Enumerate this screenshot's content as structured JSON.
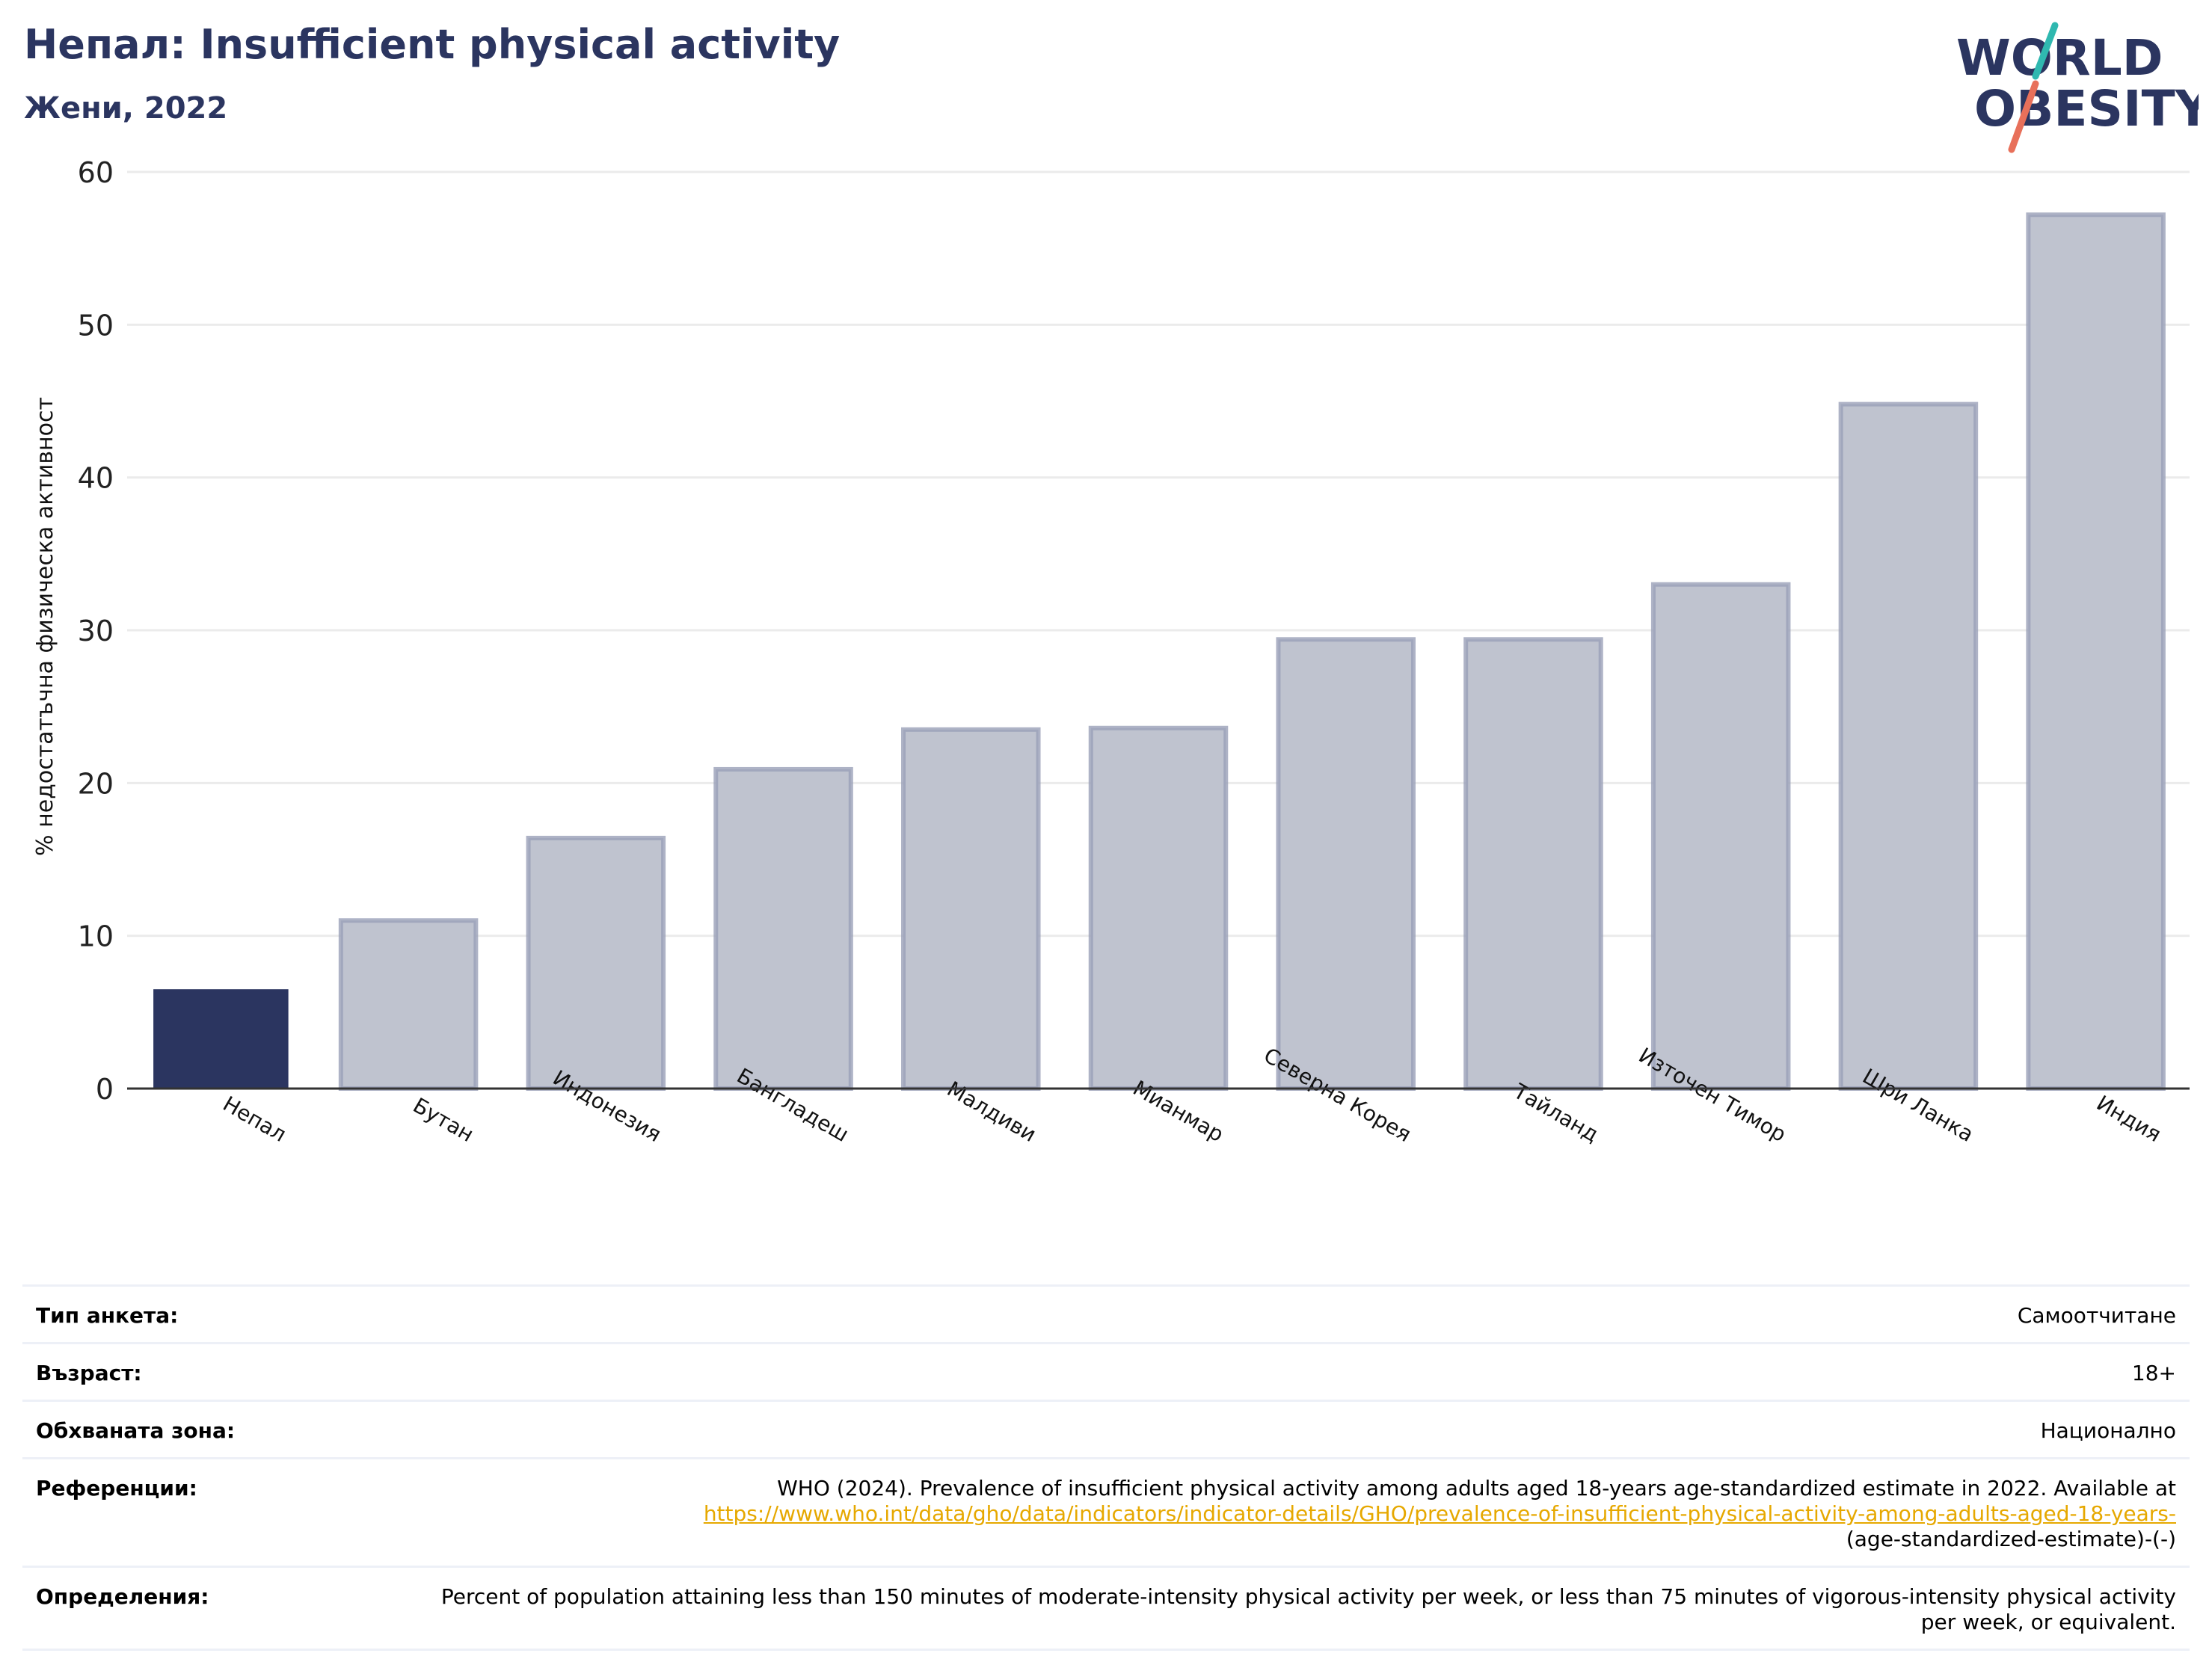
{
  "header": {
    "title": "Непал: Insufficient physical activity",
    "subtitle": "Жени, 2022"
  },
  "logo": {
    "line1": "WORLD",
    "line2": "OBESITY"
  },
  "chart_data": {
    "type": "bar",
    "ylabel": "% недостатъчна физическа активност",
    "xlabel": "",
    "ylim": [
      0,
      60
    ],
    "yticks": [
      0,
      10,
      20,
      30,
      40,
      50,
      60
    ],
    "grid": true,
    "categories": [
      "Непал",
      "Бутан",
      "Индонезия",
      "Бангладеш",
      "Малдиви",
      "Мианмар",
      "Северна Корея",
      "Тайланд",
      "Източен Тимор",
      "Шри Ланка",
      "Индия"
    ],
    "values": [
      6.5,
      11.0,
      16.4,
      20.9,
      23.5,
      23.6,
      29.4,
      29.4,
      33.0,
      44.8,
      57.2
    ],
    "highlight_index": 0,
    "colors": {
      "highlight": "#2b3560",
      "bar": "#bfc3cf",
      "bar_edge": "#9aa0b8",
      "grid": "#ebebeb",
      "axis": "#333333"
    }
  },
  "meta": {
    "survey_type_label": "Тип анкета:",
    "survey_type_value": "Самоотчитане",
    "age_label": "Възраст:",
    "age_value": "18+",
    "area_label": "Обхваната зона:",
    "area_value": "Национално",
    "references_label": "Референции:",
    "references_text": "WHO (2024). Prevalence of insufficient physical activity among adults aged 18-years age-standardized estimate in 2022. Available at",
    "references_link": "https://www.who.int/data/gho/data/indicators/indicator-details/GHO/prevalence-of-insufficient-physical-activity-among-adults-aged-18-years-",
    "references_suffix": "(age-standardized-estimate)-(-)",
    "definitions_label": "Определения:",
    "definitions_text": "Percent of population attaining less than 150 minutes of moderate-intensity physical activity per week, or less than 75 minutes of vigorous-intensity physical activity per week, or equivalent."
  }
}
